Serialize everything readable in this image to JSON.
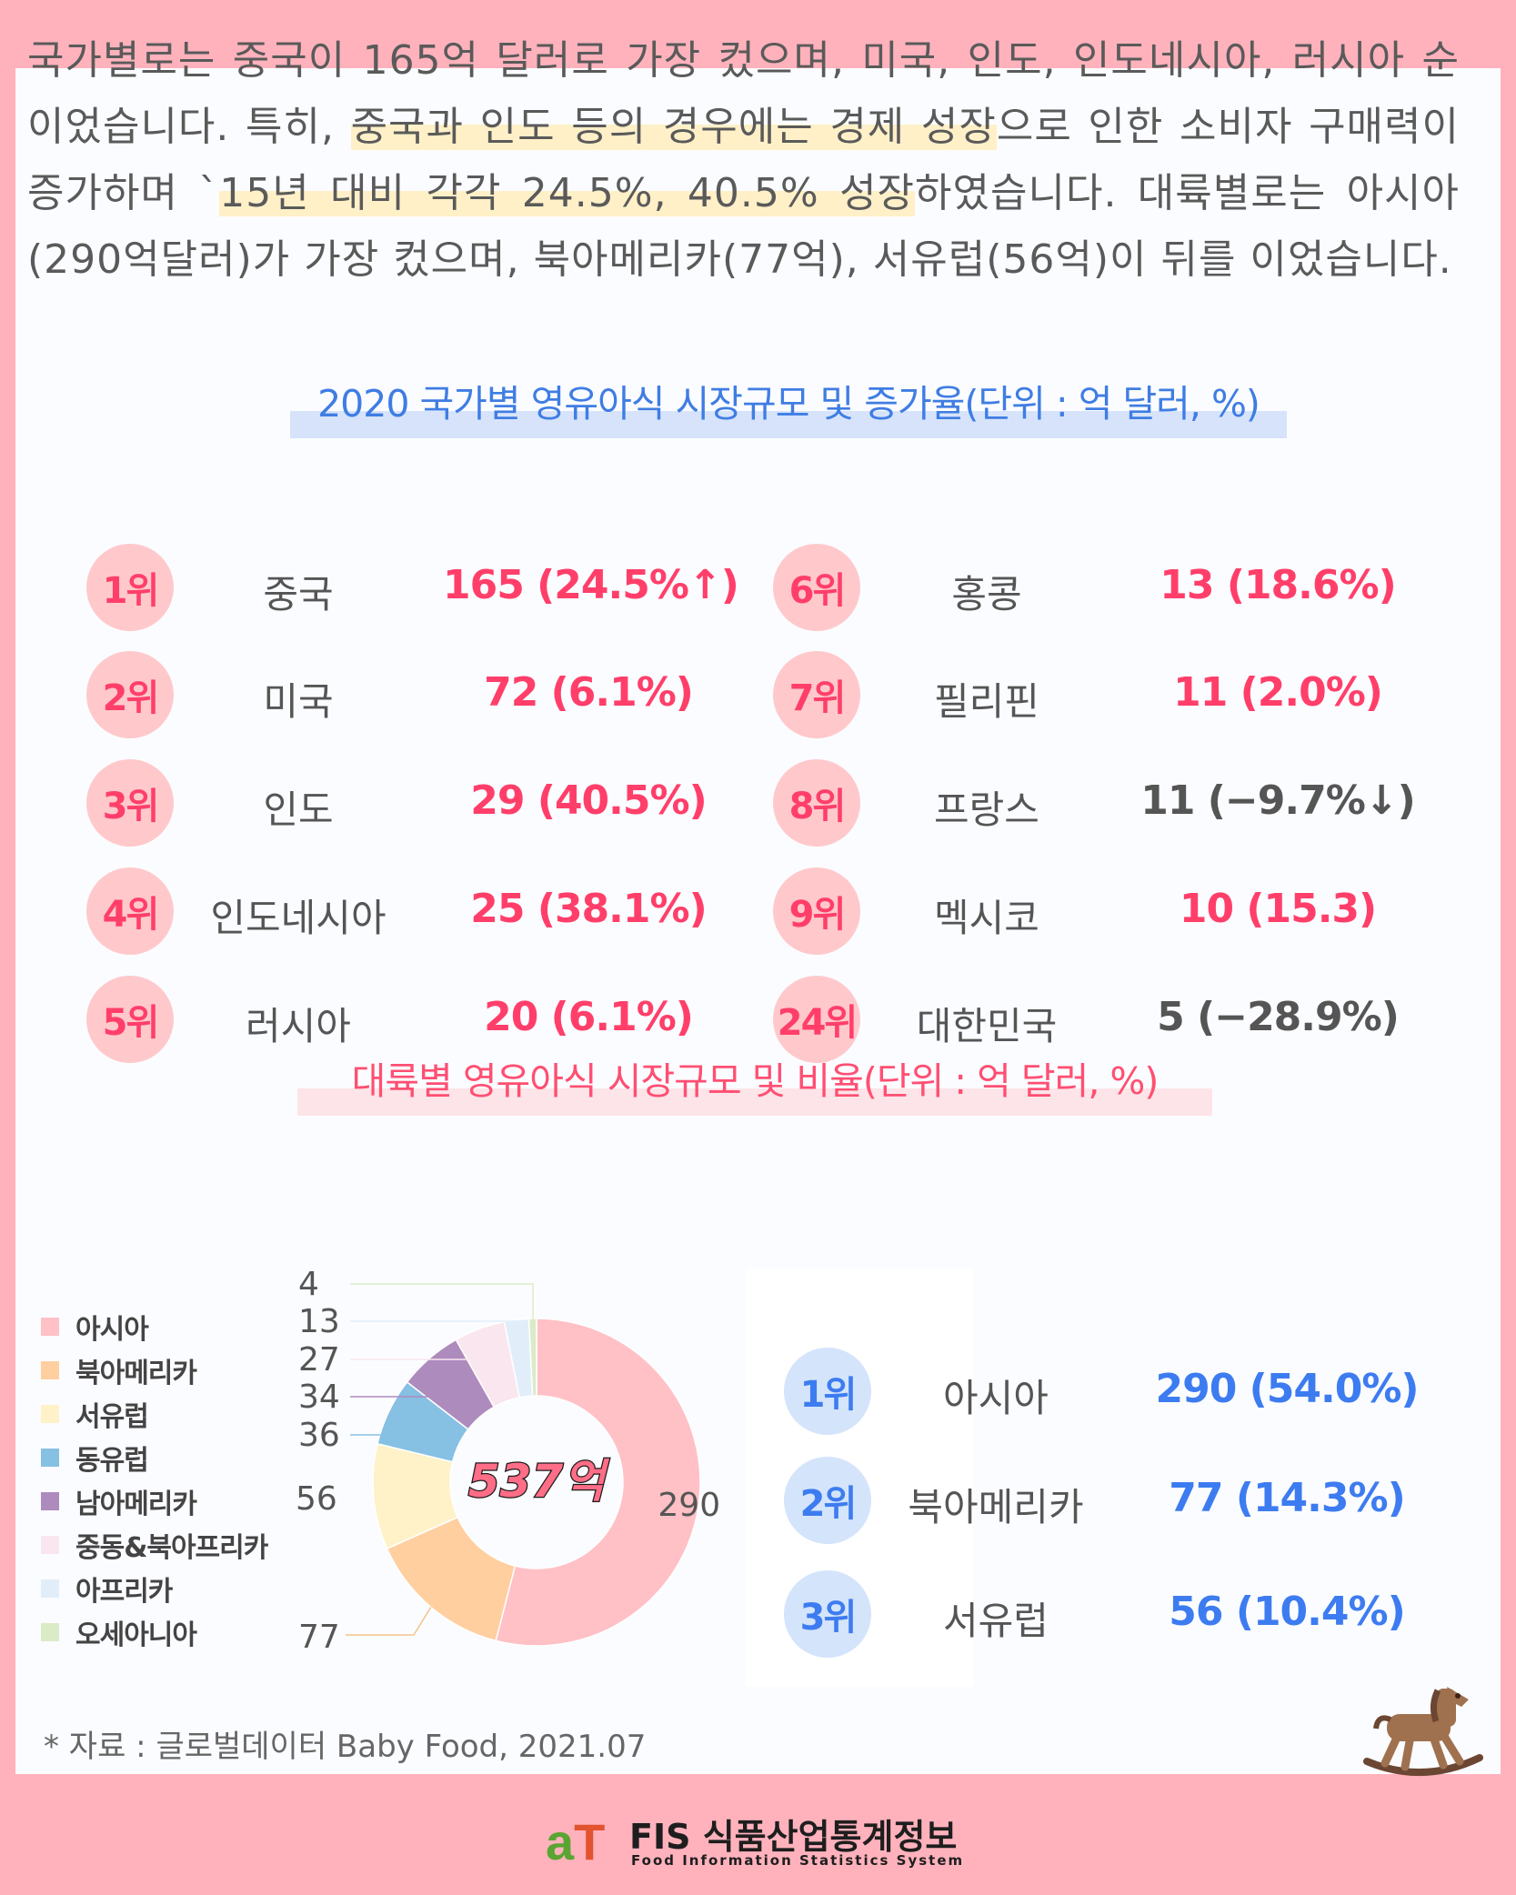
{
  "paragraph": {
    "p1": "국가별로는 중국이 165억 달러로 가장 컸으며, 미국, 인도, 인도네시아, 러시아 순이었습니다. 특히, ",
    "p2": "중국과 인도 등의 경우에는 경제 성장",
    "p3": "으로 인한 소비자 구매력이 증가하며 `",
    "p4": "15년 대비 각각 24.5%, 40.5% 성장",
    "p5": "하였습니다. 대륙별로는 아시아(290억달러)가 가장 컸으며, 북아메리카(77억), 서유럽(56억)이 뒤를 이었습니다."
  },
  "country_title": "2020 국가별 영유아식 시장규모 및 증가율(단위 : 억 달러, %)",
  "countries": [
    {
      "rank": "1위",
      "name": "중국",
      "value": "165 (24.5%↑)"
    },
    {
      "rank": "2위",
      "name": "미국",
      "value": "72 (6.1%)"
    },
    {
      "rank": "3위",
      "name": "인도",
      "value": "29 (40.5%)"
    },
    {
      "rank": "4위",
      "name": "인도네시아",
      "value": "25 (38.1%)"
    },
    {
      "rank": "5위",
      "name": "러시아",
      "value": "20 (6.1%)"
    },
    {
      "rank": "6위",
      "name": "홍콩",
      "value": "13 (18.6%)"
    },
    {
      "rank": "7위",
      "name": "필리핀",
      "value": "11 (2.0%)"
    },
    {
      "rank": "8위",
      "name": "프랑스",
      "value": "11 (−9.7%↓)"
    },
    {
      "rank": "9위",
      "name": "멕시코",
      "value": "10 (15.3)"
    },
    {
      "rank": "24위",
      "name": "대한민국",
      "value": "5 (−28.9%)"
    }
  ],
  "continent_title": "대륙별 영유아식 시장규모 및 비율(단위 : 억 달러, %)",
  "continents_top": [
    {
      "rank": "1위",
      "name": "아시아",
      "value": "290 (54.0%)"
    },
    {
      "rank": "2위",
      "name": "북아메리카",
      "value": "77 (14.3%)"
    },
    {
      "rank": "3위",
      "name": "서유럽",
      "value": "56 (10.4%)"
    }
  ],
  "chart_data": {
    "type": "pie",
    "center_label": "537억",
    "categories": [
      "아시아",
      "북아메리카",
      "서유럽",
      "동유럽",
      "남아메리카",
      "중동&북아프리카",
      "아프리카",
      "오세아니아"
    ],
    "values": [
      290,
      77,
      56,
      36,
      34,
      27,
      13,
      4
    ],
    "colors": [
      "#ffc0c6",
      "#ffcf9f",
      "#fff2c8",
      "#86c0e3",
      "#ad8bbd",
      "#f9e6ee",
      "#e1eefa",
      "#dbebc8"
    ],
    "legend_position": "left"
  },
  "source": "* 자료 : 글로벌데이터 Baby Food, 2021.07",
  "footer": {
    "logo_a": "a",
    "logo_t": "T",
    "brand": "FIS 식품산업통계정보",
    "sub": "Food Information Statistics System"
  }
}
